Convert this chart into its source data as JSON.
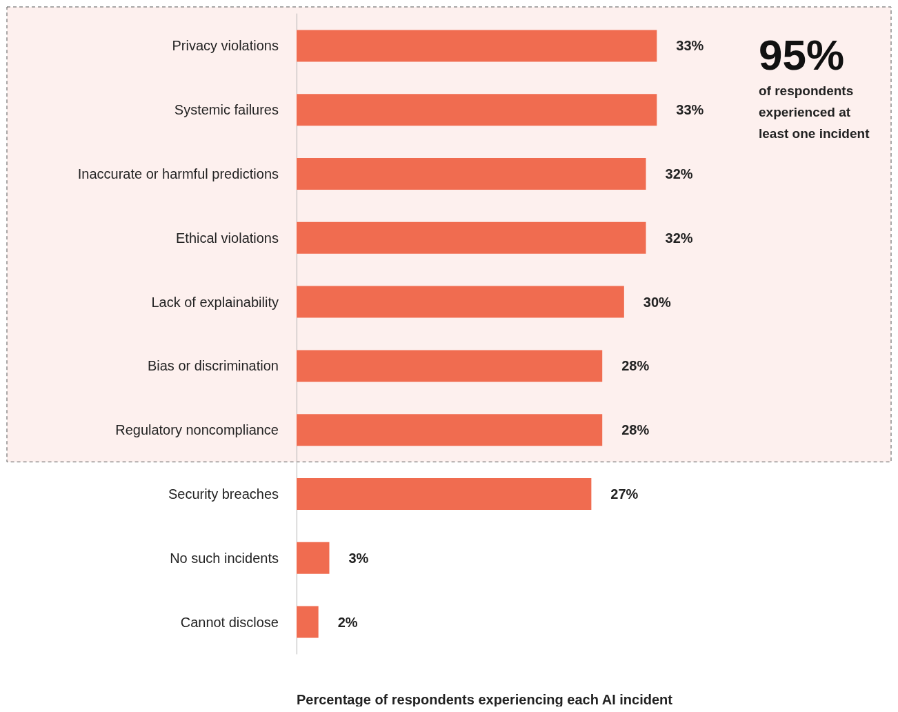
{
  "chart_data": {
    "type": "bar",
    "orientation": "horizontal",
    "xlabel": "Percentage of respondents experiencing each AI incident",
    "categories": [
      "Privacy violations",
      "Systemic failures",
      "Inaccurate or harmful predictions",
      "Ethical violations",
      "Lack of explainability",
      "Bias or discrimination",
      "Regulatory noncompliance",
      "Security breaches",
      "No such incidents",
      "Cannot disclose"
    ],
    "values": [
      33,
      33,
      32,
      32,
      30,
      28,
      28,
      27,
      3,
      2
    ],
    "value_labels": [
      "33%",
      "33%",
      "32%",
      "32%",
      "30%",
      "28%",
      "28%",
      "27%",
      "3%",
      "2%"
    ],
    "color": "#f06c50",
    "bands": [
      {
        "axis": "y",
        "from": "Privacy violations",
        "to": "Regulatory noncompliance",
        "color": "#fdf0ee"
      }
    ],
    "annotations": [
      "95%",
      "of respondents experienced at least one incident"
    ],
    "tick_labels": "y"
  }
}
